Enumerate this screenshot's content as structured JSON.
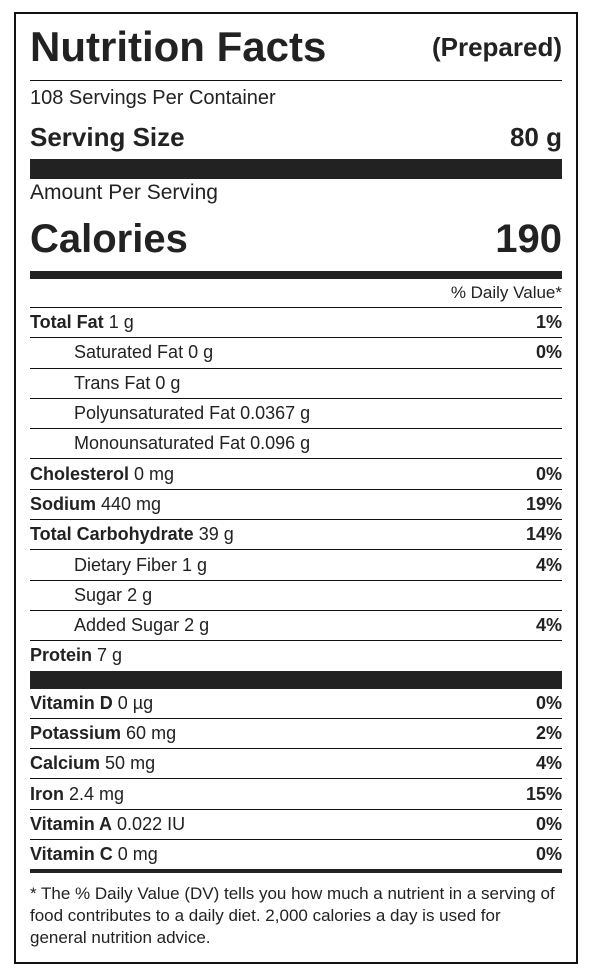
{
  "header": {
    "title": "Nutrition Facts",
    "qualifier": "(Prepared)",
    "servings": "108 Servings Per Container",
    "serving_size_label": "Serving Size",
    "serving_size": "80 g"
  },
  "calories": {
    "heading": "Amount Per Serving",
    "label": "Calories",
    "value": "190"
  },
  "daily_value_heading": "% Daily Value*",
  "nutrients": [
    {
      "name": "Total Fat",
      "amount": "1 g",
      "dv": "1%",
      "sub": [
        {
          "name": "Saturated Fat",
          "amount": "0 g",
          "dv": "0%"
        },
        {
          "name": "Trans Fat",
          "amount": "0 g"
        },
        {
          "name": "Polyunsaturated Fat",
          "amount": "0.0367 g"
        },
        {
          "name": "Monounsaturated Fat",
          "amount": "0.096 g"
        }
      ]
    },
    {
      "name": "Cholesterol",
      "amount": "0 mg",
      "dv": "0%"
    },
    {
      "name": "Sodium",
      "amount": "440 mg",
      "dv": "19%"
    },
    {
      "name": "Total Carbohydrate",
      "amount": "39 g",
      "dv": "14%",
      "sub": [
        {
          "name": "Dietary Fiber",
          "amount": "1 g",
          "dv": "4%"
        },
        {
          "name": "Sugar",
          "amount": "2 g"
        },
        {
          "name": "Added Sugar",
          "amount": "2 g",
          "dv": "4%"
        }
      ]
    },
    {
      "name": "Protein",
      "amount": "7 g"
    }
  ],
  "vitamins": [
    {
      "name": "Vitamin D",
      "amount": "0 µg",
      "dv": "0%"
    },
    {
      "name": "Potassium",
      "amount": "60 mg",
      "dv": "2%"
    },
    {
      "name": "Calcium",
      "amount": "50 mg",
      "dv": "4%"
    },
    {
      "name": "Iron",
      "amount": "2.4 mg",
      "dv": "15%"
    },
    {
      "name": "Vitamin A",
      "amount": "0.022 IU",
      "dv": "0%"
    },
    {
      "name": "Vitamin C",
      "amount": "0 mg",
      "dv": "0%"
    }
  ],
  "footnote": "* The % Daily Value (DV) tells you how much a nutrient in a serving of food contributes to a daily diet. 2,000 calories a day is used for general nutrition advice."
}
